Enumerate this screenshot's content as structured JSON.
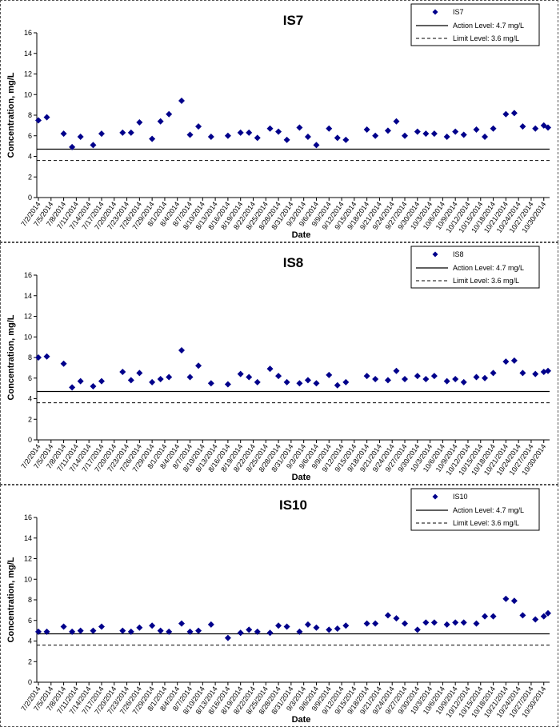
{
  "chart_data": [
    {
      "type": "scatter",
      "title": "IS7",
      "xlabel": "Date",
      "ylabel": "Concentration, mg/L",
      "ylim": [
        0,
        16
      ],
      "yticks": [
        0,
        2,
        4,
        6,
        8,
        10,
        12,
        14,
        16
      ],
      "xlim": [
        "7/2/2014",
        "10/31/2014"
      ],
      "xtick_labels": [
        "7/2/2014",
        "7/5/2014",
        "7/8/2014",
        "7/11/2014",
        "7/14/2014",
        "7/17/2014",
        "7/20/2014",
        "7/23/2014",
        "7/26/2014",
        "7/29/2014",
        "8/1/2014",
        "8/4/2014",
        "8/7/2014",
        "8/10/2014",
        "8/13/2014",
        "8/16/2014",
        "8/19/2014",
        "8/22/2014",
        "8/25/2014",
        "8/28/2014",
        "8/31/2014",
        "9/3/2014",
        "9/6/2014",
        "9/9/2014",
        "9/12/2014",
        "9/15/2014",
        "9/18/2014",
        "9/21/2014",
        "9/24/2014",
        "9/27/2014",
        "9/30/2014",
        "10/3/2014",
        "10/6/2014",
        "10/9/2014",
        "10/12/2014",
        "10/15/2014",
        "10/18/2014",
        "10/21/2014",
        "10/24/2014",
        "10/27/2014",
        "10/30/2014"
      ],
      "grid": false,
      "legend_position": "top-right",
      "series": [
        {
          "name": "IS7",
          "color": "#00008B",
          "marker": "diamond",
          "x": [
            "7/2/2014",
            "7/4/2014",
            "7/8/2014",
            "7/10/2014",
            "7/12/2014",
            "7/15/2014",
            "7/17/2014",
            "7/22/2014",
            "7/24/2014",
            "7/26/2014",
            "7/29/2014",
            "7/31/2014",
            "8/2/2014",
            "8/5/2014",
            "8/7/2014",
            "8/9/2014",
            "8/12/2014",
            "8/16/2014",
            "8/19/2014",
            "8/21/2014",
            "8/23/2014",
            "8/26/2014",
            "8/28/2014",
            "8/30/2014",
            "9/2/2014",
            "9/4/2014",
            "9/6/2014",
            "9/9/2014",
            "9/11/2014",
            "9/13/2014",
            "9/18/2014",
            "9/20/2014",
            "9/23/2014",
            "9/25/2014",
            "9/27/2014",
            "9/30/2014",
            "10/2/2014",
            "10/4/2014",
            "10/7/2014",
            "10/9/2014",
            "10/11/2014",
            "10/14/2014",
            "10/16/2014",
            "10/18/2014",
            "10/21/2014",
            "10/23/2014",
            "10/25/2014",
            "10/28/2014",
            "10/30/2014",
            "10/31/2014"
          ],
          "y": [
            7.5,
            7.8,
            6.2,
            4.9,
            5.9,
            5.1,
            6.2,
            6.3,
            6.3,
            7.3,
            5.7,
            7.4,
            8.1,
            9.4,
            6.1,
            6.9,
            5.9,
            6.0,
            6.3,
            6.3,
            5.8,
            6.7,
            6.4,
            5.6,
            6.8,
            5.9,
            5.1,
            6.7,
            5.8,
            5.6,
            6.6,
            6.0,
            6.5,
            7.4,
            6.0,
            6.4,
            6.2,
            6.2,
            5.9,
            6.4,
            6.1,
            6.6,
            5.9,
            6.7,
            8.1,
            8.2,
            6.9,
            6.7,
            7.0,
            6.8
          ]
        }
      ],
      "reference_lines": [
        {
          "name": "Action Level: 4.7 mg/L",
          "value": 4.7,
          "style": "solid"
        },
        {
          "name": "Limit Level: 3.6 mg/L",
          "value": 3.6,
          "style": "dashed"
        }
      ]
    },
    {
      "type": "scatter",
      "title": "IS8",
      "xlabel": "Date",
      "ylabel": "Concentration, mg/L",
      "ylim": [
        0,
        16
      ],
      "yticks": [
        0,
        2,
        4,
        6,
        8,
        10,
        12,
        14,
        16
      ],
      "xlim": [
        "7/2/2014",
        "10/31/2014"
      ],
      "xtick_labels": [
        "7/2/2014",
        "7/5/2014",
        "7/8/2014",
        "7/11/2014",
        "7/14/2014",
        "7/17/2014",
        "7/20/2014",
        "7/23/2014",
        "7/26/2014",
        "7/29/2014",
        "8/1/2014",
        "8/4/2014",
        "8/7/2014",
        "8/10/2014",
        "8/13/2014",
        "8/16/2014",
        "8/19/2014",
        "8/22/2014",
        "8/25/2014",
        "8/28/2014",
        "8/31/2014",
        "9/3/2014",
        "9/6/2014",
        "9/9/2014",
        "9/12/2014",
        "9/15/2014",
        "9/18/2014",
        "9/21/2014",
        "9/24/2014",
        "9/27/2014",
        "9/30/2014",
        "10/3/2014",
        "10/6/2014",
        "10/9/2014",
        "10/12/2014",
        "10/15/2014",
        "10/18/2014",
        "10/21/2014",
        "10/24/2014",
        "10/27/2014",
        "10/30/2014"
      ],
      "grid": false,
      "legend_position": "top-right",
      "series": [
        {
          "name": "IS8",
          "color": "#00008B",
          "marker": "diamond",
          "x": [
            "7/2/2014",
            "7/4/2014",
            "7/8/2014",
            "7/10/2014",
            "7/12/2014",
            "7/15/2014",
            "7/17/2014",
            "7/22/2014",
            "7/24/2014",
            "7/26/2014",
            "7/29/2014",
            "7/31/2014",
            "8/2/2014",
            "8/5/2014",
            "8/7/2014",
            "8/9/2014",
            "8/12/2014",
            "8/16/2014",
            "8/19/2014",
            "8/21/2014",
            "8/23/2014",
            "8/26/2014",
            "8/28/2014",
            "8/30/2014",
            "9/2/2014",
            "9/4/2014",
            "9/6/2014",
            "9/9/2014",
            "9/11/2014",
            "9/13/2014",
            "9/18/2014",
            "9/20/2014",
            "9/23/2014",
            "9/25/2014",
            "9/27/2014",
            "9/30/2014",
            "10/2/2014",
            "10/4/2014",
            "10/7/2014",
            "10/9/2014",
            "10/11/2014",
            "10/14/2014",
            "10/16/2014",
            "10/18/2014",
            "10/21/2014",
            "10/23/2014",
            "10/25/2014",
            "10/28/2014",
            "10/30/2014",
            "10/31/2014"
          ],
          "y": [
            8.0,
            8.1,
            7.4,
            5.1,
            5.7,
            5.2,
            5.7,
            6.6,
            5.8,
            6.5,
            5.6,
            5.9,
            6.1,
            8.7,
            6.1,
            7.2,
            5.5,
            5.4,
            6.4,
            6.1,
            5.6,
            6.9,
            6.2,
            5.6,
            5.5,
            5.8,
            5.5,
            6.3,
            5.3,
            5.6,
            6.2,
            5.9,
            5.8,
            6.7,
            5.9,
            6.2,
            5.9,
            6.2,
            5.7,
            5.9,
            5.6,
            6.1,
            6.0,
            6.5,
            7.6,
            7.7,
            6.5,
            6.4,
            6.6,
            6.7
          ]
        }
      ],
      "reference_lines": [
        {
          "name": "Action Level: 4.7 mg/L",
          "value": 4.7,
          "style": "solid"
        },
        {
          "name": "Limit Level: 3.6 mg/L",
          "value": 3.6,
          "style": "dashed"
        }
      ]
    },
    {
      "type": "scatter",
      "title": "IS10",
      "xlabel": "Date",
      "ylabel": "Concentration, mg/L",
      "ylim": [
        0,
        16
      ],
      "yticks": [
        0,
        2,
        4,
        6,
        8,
        10,
        12,
        14,
        16
      ],
      "xlim": [
        "7/2/2014",
        "10/31/2014"
      ],
      "xtick_labels": [
        "7/2/2014",
        "7/5/2014",
        "7/8/2014",
        "7/11/2014",
        "7/14/2014",
        "7/17/2014",
        "7/20/2014",
        "7/23/2014",
        "7/26/2014",
        "7/29/2014",
        "8/1/2014",
        "8/4/2014",
        "8/7/2014",
        "8/10/2014",
        "8/13/2014",
        "8/16/2014",
        "8/19/2014",
        "8/22/2014",
        "8/25/2014",
        "8/28/2014",
        "8/31/2014",
        "9/3/2014",
        "9/6/2014",
        "9/9/2014",
        "9/12/2014",
        "9/15/2014",
        "9/18/2014",
        "9/21/2014",
        "9/24/2014",
        "9/27/2014",
        "9/30/2014",
        "10/3/2014",
        "10/6/2014",
        "10/9/2014",
        "10/12/2014",
        "10/15/2014",
        "10/18/2014",
        "10/21/2014",
        "10/24/2014",
        "10/27/2014",
        "10/30/2014"
      ],
      "grid": false,
      "legend_position": "top-right",
      "series": [
        {
          "name": "IS10",
          "color": "#00008B",
          "marker": "diamond",
          "x": [
            "7/2/2014",
            "7/4/2014",
            "7/8/2014",
            "7/10/2014",
            "7/12/2014",
            "7/15/2014",
            "7/17/2014",
            "7/22/2014",
            "7/24/2014",
            "7/26/2014",
            "7/29/2014",
            "7/31/2014",
            "8/2/2014",
            "8/5/2014",
            "8/7/2014",
            "8/9/2014",
            "8/12/2014",
            "8/16/2014",
            "8/19/2014",
            "8/21/2014",
            "8/23/2014",
            "8/26/2014",
            "8/28/2014",
            "8/30/2014",
            "9/2/2014",
            "9/4/2014",
            "9/6/2014",
            "9/9/2014",
            "9/11/2014",
            "9/13/2014",
            "9/18/2014",
            "9/20/2014",
            "9/23/2014",
            "9/25/2014",
            "9/27/2014",
            "9/30/2014",
            "10/2/2014",
            "10/4/2014",
            "10/7/2014",
            "10/9/2014",
            "10/11/2014",
            "10/14/2014",
            "10/16/2014",
            "10/18/2014",
            "10/21/2014",
            "10/23/2014",
            "10/25/2014",
            "10/28/2014",
            "10/30/2014",
            "10/31/2014"
          ],
          "y": [
            4.9,
            4.9,
            5.4,
            4.9,
            5.0,
            5.0,
            5.4,
            5.0,
            4.9,
            5.3,
            5.5,
            5.0,
            4.9,
            5.7,
            4.9,
            5.0,
            5.6,
            4.3,
            4.8,
            5.1,
            4.9,
            4.8,
            5.5,
            5.4,
            4.9,
            5.6,
            5.3,
            5.1,
            5.2,
            5.5,
            5.7,
            5.7,
            6.5,
            6.2,
            5.7,
            5.1,
            5.8,
            5.8,
            5.6,
            5.8,
            5.8,
            5.7,
            6.4,
            6.4,
            8.1,
            7.9,
            6.5,
            6.1,
            6.4,
            6.7
          ]
        }
      ],
      "reference_lines": [
        {
          "name": "Action Level: 4.7 mg/L",
          "value": 4.7,
          "style": "solid"
        },
        {
          "name": "Limit Level: 3.6 mg/L",
          "value": 3.6,
          "style": "dashed"
        }
      ]
    }
  ]
}
